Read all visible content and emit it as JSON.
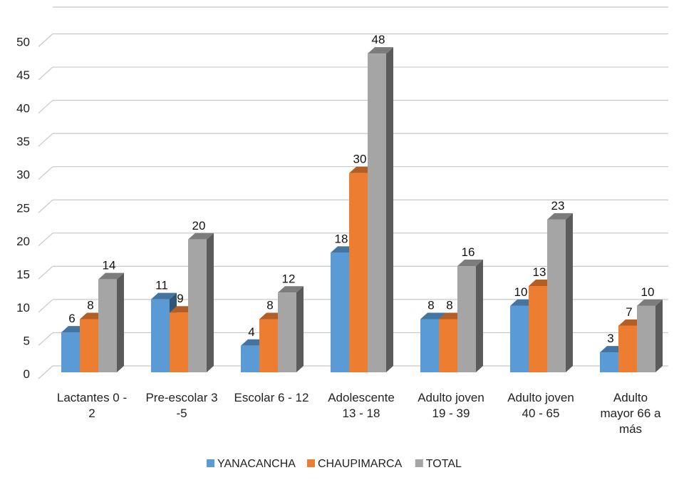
{
  "chart_data": {
    "type": "bar",
    "title": "",
    "xlabel": "",
    "ylabel": "",
    "ylim": [
      0,
      50
    ],
    "yticks": [
      0,
      5,
      10,
      15,
      20,
      25,
      30,
      35,
      40,
      45,
      50
    ],
    "grid": true,
    "three_d": true,
    "legend_position": "bottom",
    "categories": [
      [
        "Lactantes 0 -",
        "2"
      ],
      [
        "Pre-escolar 3",
        "-5"
      ],
      [
        "Escolar 6 - 12"
      ],
      [
        "Adolescente",
        "13 - 18"
      ],
      [
        "Adulto joven",
        "19 - 39"
      ],
      [
        "Adulto joven",
        "40 - 65"
      ],
      [
        "Adulto",
        "mayor 66 a",
        "más"
      ]
    ],
    "series": [
      {
        "name": "YANACANCHA",
        "color": "#5B9BD5",
        "values": [
          6,
          11,
          4,
          18,
          8,
          10,
          3
        ]
      },
      {
        "name": "CHAUPIMARCA",
        "color": "#ED7D31",
        "values": [
          8,
          9,
          8,
          30,
          8,
          13,
          7
        ]
      },
      {
        "name": "TOTAL",
        "color": "#A5A5A5",
        "values": [
          14,
          20,
          12,
          48,
          16,
          23,
          10
        ]
      }
    ]
  }
}
